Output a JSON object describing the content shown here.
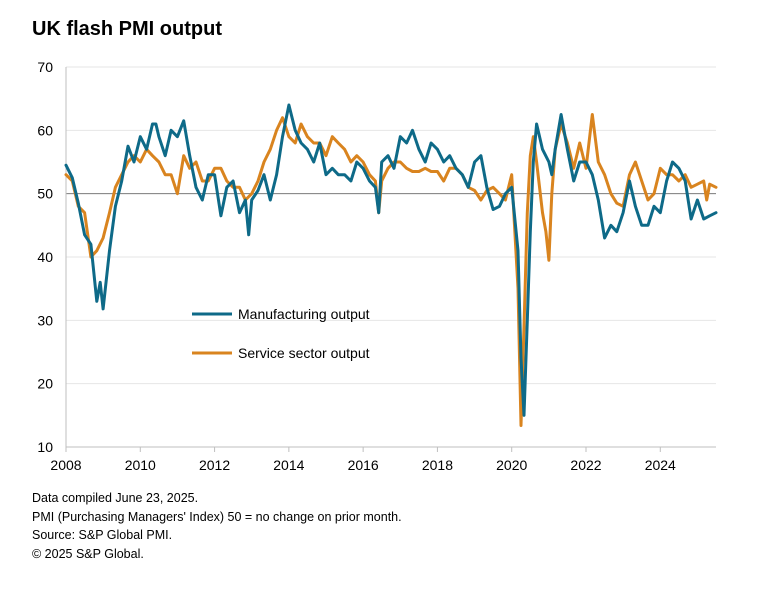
{
  "chart_data": {
    "type": "line",
    "title": "UK flash PMI output",
    "xlabel": "",
    "ylabel": "",
    "xlim": [
      2008.0,
      2025.5
    ],
    "ylim": [
      10,
      70
    ],
    "yticks": [
      10,
      20,
      30,
      40,
      50,
      60,
      70
    ],
    "xticks": [
      2008,
      2010,
      2012,
      2014,
      2016,
      2018,
      2020,
      2022,
      2024
    ],
    "reference_line": 50,
    "grid": "horizontal",
    "legend_position": "center-left",
    "colors": {
      "manufacturing": "#0e6a88",
      "services": "#d9841f",
      "reference": "#7f7f7f",
      "grid": "#e6e6e6"
    },
    "series": [
      {
        "name": "Manufacturing output",
        "color": "#0e6a88",
        "points": [
          [
            2008.0,
            54.5
          ],
          [
            2008.17,
            52.5
          ],
          [
            2008.33,
            48.5
          ],
          [
            2008.5,
            43.5
          ],
          [
            2008.67,
            42
          ],
          [
            2008.83,
            33
          ],
          [
            2008.92,
            36
          ],
          [
            2009.0,
            31.8
          ],
          [
            2009.17,
            41
          ],
          [
            2009.33,
            48
          ],
          [
            2009.5,
            52
          ],
          [
            2009.67,
            57.5
          ],
          [
            2009.83,
            55
          ],
          [
            2010.0,
            59
          ],
          [
            2010.17,
            57
          ],
          [
            2010.33,
            61
          ],
          [
            2010.42,
            61
          ],
          [
            2010.5,
            59
          ],
          [
            2010.67,
            56
          ],
          [
            2010.83,
            60
          ],
          [
            2011.0,
            59
          ],
          [
            2011.17,
            61.5
          ],
          [
            2011.33,
            56
          ],
          [
            2011.5,
            51
          ],
          [
            2011.67,
            49
          ],
          [
            2011.83,
            53
          ],
          [
            2012.0,
            53
          ],
          [
            2012.17,
            46.5
          ],
          [
            2012.33,
            51
          ],
          [
            2012.5,
            52
          ],
          [
            2012.67,
            47
          ],
          [
            2012.83,
            49
          ],
          [
            2012.92,
            43.5
          ],
          [
            2013.0,
            49
          ],
          [
            2013.17,
            50.5
          ],
          [
            2013.33,
            53
          ],
          [
            2013.5,
            49
          ],
          [
            2013.67,
            53
          ],
          [
            2013.83,
            59
          ],
          [
            2014.0,
            64
          ],
          [
            2014.17,
            60
          ],
          [
            2014.33,
            58
          ],
          [
            2014.5,
            57
          ],
          [
            2014.67,
            55
          ],
          [
            2014.83,
            58
          ],
          [
            2015.0,
            53
          ],
          [
            2015.17,
            54
          ],
          [
            2015.33,
            53
          ],
          [
            2015.5,
            53
          ],
          [
            2015.67,
            52
          ],
          [
            2015.83,
            55
          ],
          [
            2016.0,
            54
          ],
          [
            2016.17,
            52
          ],
          [
            2016.33,
            51
          ],
          [
            2016.42,
            47
          ],
          [
            2016.5,
            55
          ],
          [
            2016.67,
            56
          ],
          [
            2016.83,
            54
          ],
          [
            2017.0,
            59
          ],
          [
            2017.17,
            58
          ],
          [
            2017.33,
            60
          ],
          [
            2017.5,
            57
          ],
          [
            2017.67,
            55
          ],
          [
            2017.83,
            58
          ],
          [
            2018.0,
            57
          ],
          [
            2018.17,
            55
          ],
          [
            2018.33,
            56
          ],
          [
            2018.5,
            54
          ],
          [
            2018.67,
            53
          ],
          [
            2018.83,
            51
          ],
          [
            2019.0,
            55
          ],
          [
            2019.17,
            56
          ],
          [
            2019.33,
            51
          ],
          [
            2019.5,
            47.5
          ],
          [
            2019.67,
            48
          ],
          [
            2019.83,
            50
          ],
          [
            2020.0,
            51
          ],
          [
            2020.17,
            41
          ],
          [
            2020.25,
            24
          ],
          [
            2020.33,
            15
          ],
          [
            2020.42,
            30
          ],
          [
            2020.5,
            44
          ],
          [
            2020.58,
            55
          ],
          [
            2020.67,
            61
          ],
          [
            2020.83,
            57
          ],
          [
            2021.0,
            55
          ],
          [
            2021.08,
            53
          ],
          [
            2021.17,
            57
          ],
          [
            2021.33,
            62.5
          ],
          [
            2021.5,
            57
          ],
          [
            2021.67,
            52
          ],
          [
            2021.83,
            55
          ],
          [
            2022.0,
            55
          ],
          [
            2022.17,
            53
          ],
          [
            2022.33,
            49
          ],
          [
            2022.5,
            43
          ],
          [
            2022.67,
            45
          ],
          [
            2022.83,
            44
          ],
          [
            2023.0,
            47
          ],
          [
            2023.17,
            52
          ],
          [
            2023.33,
            48
          ],
          [
            2023.5,
            45
          ],
          [
            2023.67,
            45
          ],
          [
            2023.83,
            48
          ],
          [
            2024.0,
            47
          ],
          [
            2024.17,
            52
          ],
          [
            2024.33,
            55
          ],
          [
            2024.5,
            54
          ],
          [
            2024.67,
            52
          ],
          [
            2024.83,
            46
          ],
          [
            2025.0,
            49
          ],
          [
            2025.17,
            46
          ],
          [
            2025.33,
            46.5
          ],
          [
            2025.5,
            47
          ]
        ]
      },
      {
        "name": "Service sector output",
        "color": "#d9841f",
        "points": [
          [
            2008.0,
            53
          ],
          [
            2008.17,
            52
          ],
          [
            2008.33,
            48
          ],
          [
            2008.5,
            47
          ],
          [
            2008.67,
            40
          ],
          [
            2008.83,
            41
          ],
          [
            2009.0,
            43
          ],
          [
            2009.17,
            47
          ],
          [
            2009.33,
            51
          ],
          [
            2009.5,
            53
          ],
          [
            2009.67,
            55
          ],
          [
            2009.83,
            56
          ],
          [
            2010.0,
            55
          ],
          [
            2010.17,
            57
          ],
          [
            2010.33,
            56
          ],
          [
            2010.5,
            55
          ],
          [
            2010.67,
            53
          ],
          [
            2010.83,
            53
          ],
          [
            2011.0,
            50
          ],
          [
            2011.17,
            56
          ],
          [
            2011.33,
            54
          ],
          [
            2011.5,
            55
          ],
          [
            2011.67,
            52
          ],
          [
            2011.83,
            52
          ],
          [
            2012.0,
            54
          ],
          [
            2012.17,
            54
          ],
          [
            2012.33,
            52
          ],
          [
            2012.5,
            51
          ],
          [
            2012.67,
            51
          ],
          [
            2012.83,
            49
          ],
          [
            2013.0,
            50
          ],
          [
            2013.17,
            52
          ],
          [
            2013.33,
            55
          ],
          [
            2013.5,
            57
          ],
          [
            2013.67,
            60
          ],
          [
            2013.83,
            62
          ],
          [
            2014.0,
            59
          ],
          [
            2014.17,
            58
          ],
          [
            2014.33,
            61
          ],
          [
            2014.5,
            59
          ],
          [
            2014.67,
            58
          ],
          [
            2014.83,
            58
          ],
          [
            2015.0,
            56
          ],
          [
            2015.17,
            59
          ],
          [
            2015.33,
            58
          ],
          [
            2015.5,
            57
          ],
          [
            2015.67,
            55
          ],
          [
            2015.83,
            56
          ],
          [
            2016.0,
            55
          ],
          [
            2016.17,
            53
          ],
          [
            2016.33,
            52
          ],
          [
            2016.42,
            47
          ],
          [
            2016.5,
            52
          ],
          [
            2016.67,
            54
          ],
          [
            2016.83,
            55
          ],
          [
            2017.0,
            55
          ],
          [
            2017.17,
            54
          ],
          [
            2017.33,
            53.5
          ],
          [
            2017.5,
            53.5
          ],
          [
            2017.67,
            54
          ],
          [
            2017.83,
            53.5
          ],
          [
            2018.0,
            53.5
          ],
          [
            2018.17,
            52
          ],
          [
            2018.33,
            54
          ],
          [
            2018.5,
            54
          ],
          [
            2018.67,
            53
          ],
          [
            2018.83,
            51
          ],
          [
            2019.0,
            50.5
          ],
          [
            2019.17,
            49
          ],
          [
            2019.33,
            50.5
          ],
          [
            2019.5,
            51
          ],
          [
            2019.67,
            50
          ],
          [
            2019.83,
            49
          ],
          [
            2020.0,
            53
          ],
          [
            2020.17,
            35
          ],
          [
            2020.25,
            13.4
          ],
          [
            2020.33,
            29
          ],
          [
            2020.42,
            47
          ],
          [
            2020.5,
            56
          ],
          [
            2020.58,
            59
          ],
          [
            2020.67,
            55
          ],
          [
            2020.83,
            47
          ],
          [
            2020.92,
            44
          ],
          [
            2021.0,
            39.5
          ],
          [
            2021.08,
            50
          ],
          [
            2021.17,
            57
          ],
          [
            2021.33,
            61
          ],
          [
            2021.5,
            58
          ],
          [
            2021.67,
            54
          ],
          [
            2021.83,
            58
          ],
          [
            2022.0,
            54
          ],
          [
            2022.17,
            62.5
          ],
          [
            2022.33,
            55
          ],
          [
            2022.5,
            53
          ],
          [
            2022.67,
            50
          ],
          [
            2022.83,
            48.5
          ],
          [
            2023.0,
            48
          ],
          [
            2023.17,
            53
          ],
          [
            2023.33,
            55
          ],
          [
            2023.5,
            52
          ],
          [
            2023.67,
            49
          ],
          [
            2023.83,
            50
          ],
          [
            2024.0,
            54
          ],
          [
            2024.17,
            53
          ],
          [
            2024.33,
            53
          ],
          [
            2024.5,
            52
          ],
          [
            2024.67,
            53
          ],
          [
            2024.83,
            51
          ],
          [
            2025.0,
            51.5
          ],
          [
            2025.17,
            52
          ],
          [
            2025.25,
            49
          ],
          [
            2025.33,
            51.5
          ],
          [
            2025.5,
            51
          ]
        ]
      }
    ]
  },
  "footnotes": {
    "line1": "Data compiled June 23, 2025.",
    "line2": "PMI (Purchasing Managers' Index) 50 = no change on prior month.",
    "line3": "Source: S&P Global PMI.",
    "line4": "© 2025 S&P Global."
  }
}
